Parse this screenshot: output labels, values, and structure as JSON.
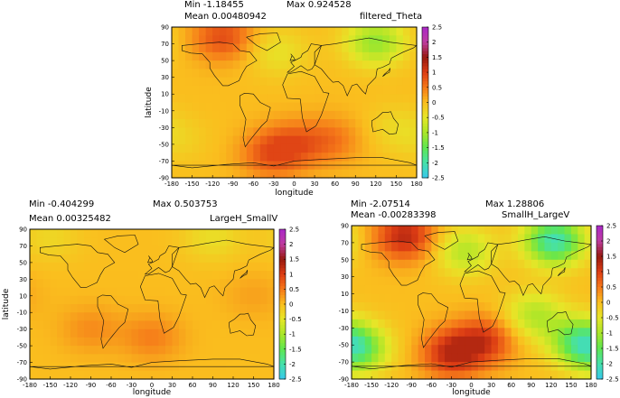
{
  "figure": {
    "panels": [
      {
        "id": "top",
        "min_label": "Min -1.18455",
        "max_label": "Max 0.924528",
        "mean_label": "Mean 0.00480942",
        "title": "filtered_Theta"
      },
      {
        "id": "left",
        "min_label": "Min -0.404299",
        "max_label": "Max 0.503753",
        "mean_label": "Mean 0.00325482",
        "title": "LargeH_SmallV"
      },
      {
        "id": "right",
        "min_label": "Min -2.07514",
        "max_label": "Max 1.28806",
        "mean_label": "Mean -0.00283398",
        "title": "SmallH_LargeV"
      }
    ]
  },
  "chart_data": [
    {
      "type": "heatmap",
      "title": "filtered_Theta",
      "xlabel": "longitude",
      "ylabel": "latitude",
      "xlim": [
        -180,
        180
      ],
      "ylim": [
        -90,
        90
      ],
      "xticks": [
        -180,
        -150,
        -120,
        -90,
        -60,
        -30,
        0,
        30,
        60,
        90,
        120,
        150,
        180
      ],
      "yticks": [
        90,
        70,
        50,
        30,
        10,
        -10,
        -30,
        -50,
        -70,
        -90
      ],
      "colorbar": {
        "range": [
          -2.5,
          2.5
        ],
        "ticks": [
          2.5,
          2,
          1.5,
          1,
          0.5,
          0,
          -0.5,
          -1,
          -1.5,
          -2,
          -2.5
        ]
      },
      "stats": {
        "min": -1.18455,
        "max": 0.924528,
        "mean": 0.00480942
      },
      "overlay": "coastlines",
      "blobs": [
        {
          "lon": -105,
          "lat": 78,
          "value": 0.85
        },
        {
          "lon": 120,
          "lat": 72,
          "value": -1.15
        },
        {
          "lon": -25,
          "lat": 60,
          "value": -0.45
        },
        {
          "lon": 0,
          "lat": -50,
          "value": 0.6
        },
        {
          "lon": -35,
          "lat": -62,
          "value": 0.7
        },
        {
          "lon": 55,
          "lat": -45,
          "value": 0.5
        },
        {
          "lon": -170,
          "lat": -45,
          "value": -0.2
        },
        {
          "lon": 150,
          "lat": -30,
          "value": -0.3
        }
      ]
    },
    {
      "type": "heatmap",
      "title": "LargeH_SmallV",
      "xlabel": "longitude",
      "ylabel": "latitude",
      "xlim": [
        -180,
        180
      ],
      "ylim": [
        -90,
        90
      ],
      "xticks": [
        -180,
        -150,
        -120,
        -90,
        -60,
        -30,
        0,
        30,
        60,
        90,
        120,
        150,
        180
      ],
      "yticks": [
        90,
        70,
        50,
        30,
        10,
        -10,
        -30,
        -50,
        -70,
        -90
      ],
      "colorbar": {
        "range": [
          -2.5,
          2.5
        ],
        "ticks": [
          2.5,
          2,
          1.5,
          1,
          0.5,
          0,
          -0.5,
          -1,
          -1.5,
          -2,
          -2.5
        ]
      },
      "stats": {
        "min": -0.404299,
        "max": 0.503753,
        "mean": 0.00325482
      },
      "overlay": "coastlines",
      "blobs": [
        {
          "lon": 0,
          "lat": -40,
          "value": 0.45
        },
        {
          "lon": -90,
          "lat": -30,
          "value": 0.35
        },
        {
          "lon": 90,
          "lat": 80,
          "value": -0.4
        },
        {
          "lon": -150,
          "lat": 80,
          "value": -0.3
        },
        {
          "lon": 150,
          "lat": 10,
          "value": 0.2
        }
      ]
    },
    {
      "type": "heatmap",
      "title": "SmallH_LargeV",
      "xlabel": "longitude",
      "ylabel": "latitude",
      "xlim": [
        -180,
        180
      ],
      "ylim": [
        -90,
        90
      ],
      "xticks": [
        -180,
        -150,
        -120,
        -90,
        -60,
        -30,
        0,
        30,
        60,
        90,
        120,
        150,
        180
      ],
      "yticks": [
        90,
        70,
        50,
        30,
        10,
        -10,
        -30,
        -50,
        -70,
        -90
      ],
      "colorbar": {
        "range": [
          -2.5,
          2.5
        ],
        "ticks": [
          2.5,
          2,
          1.5,
          1,
          0.5,
          0,
          -0.5,
          -1,
          -1.5,
          -2,
          -2.5
        ]
      },
      "stats": {
        "min": -2.07514,
        "max": 1.28806,
        "mean": -0.00283398
      },
      "overlay": "coastlines",
      "blobs": [
        {
          "lon": -100,
          "lat": 78,
          "value": 1.25
        },
        {
          "lon": 125,
          "lat": 72,
          "value": -2.05
        },
        {
          "lon": -30,
          "lat": -60,
          "value": 1.2
        },
        {
          "lon": 20,
          "lat": -45,
          "value": 1.0
        },
        {
          "lon": -170,
          "lat": -55,
          "value": -1.4
        },
        {
          "lon": 160,
          "lat": -45,
          "value": -1.2
        },
        {
          "lon": 95,
          "lat": -15,
          "value": -0.9
        },
        {
          "lon": -10,
          "lat": 60,
          "value": -0.9
        }
      ]
    }
  ]
}
